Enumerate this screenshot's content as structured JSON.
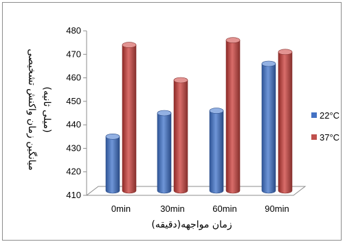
{
  "chart_data": {
    "type": "bar",
    "title": "",
    "xlabel": "زمان مواجهه(دقیقه)",
    "ylabel_line1": "میانگین زمان واکنش تشخیصی",
    "ylabel_line2": "(میلی ثانیه)",
    "categories": [
      "0min",
      "30min",
      "60min",
      "90min"
    ],
    "series": [
      {
        "name": "22°C",
        "values": [
          435,
          445,
          446,
          466
        ],
        "color": "#4472c4"
      },
      {
        "name": "37°C",
        "values": [
          474,
          459,
          476,
          471
        ],
        "color": "#c0504d"
      }
    ],
    "ylim": [
      410,
      480
    ],
    "yticks": [
      410,
      420,
      430,
      440,
      450,
      460,
      470,
      480
    ],
    "grid": false,
    "legend_position": "right",
    "style": "3d-cylinder"
  }
}
